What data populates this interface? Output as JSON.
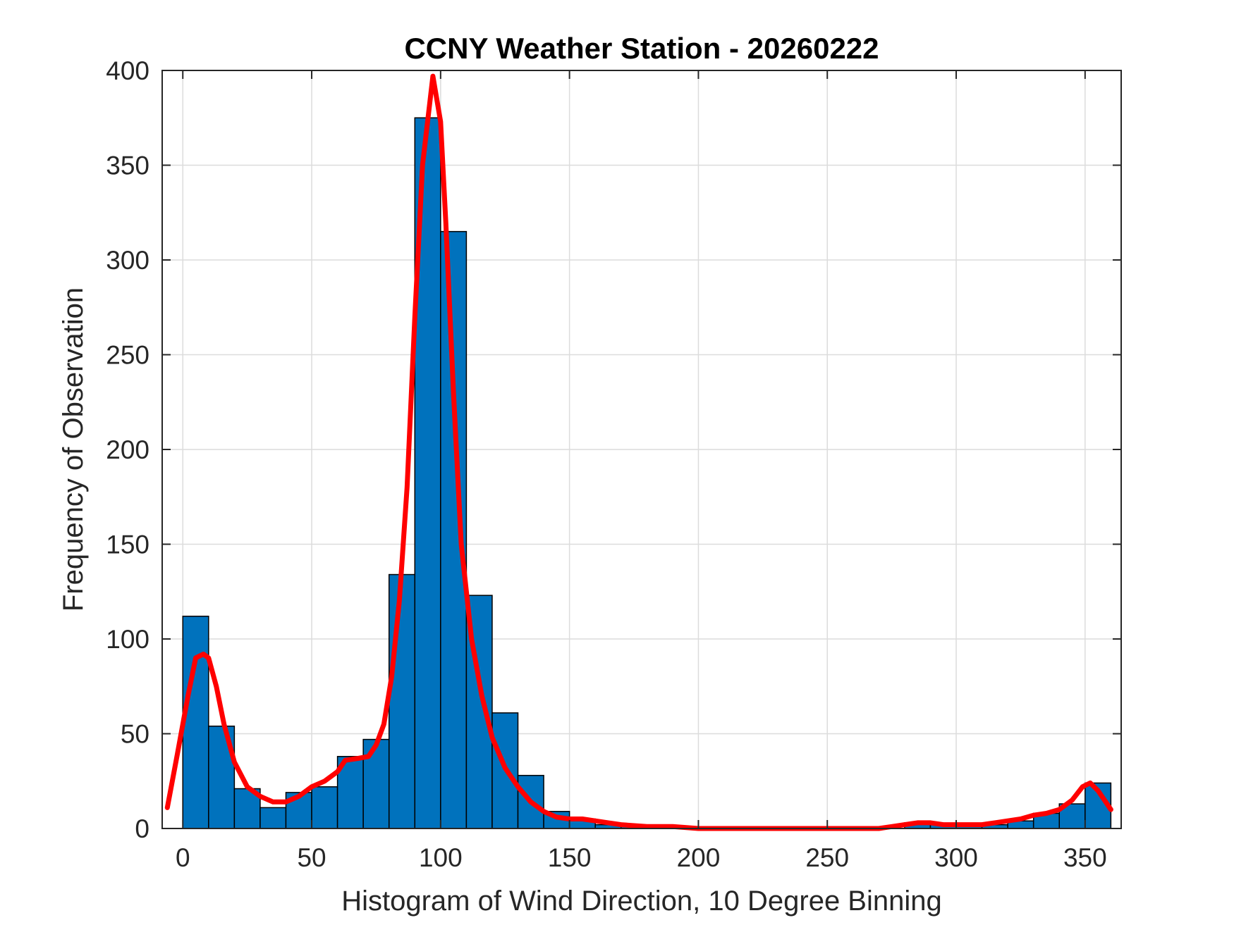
{
  "chart_data": {
    "type": "bar",
    "title": "CCNY Weather Station - 20260222",
    "xlabel": "Histogram of Wind Direction, 10 Degree Binning",
    "ylabel": "Frequency of Observation",
    "xlim": [
      -8,
      364
    ],
    "ylim": [
      0,
      400
    ],
    "xticks": [
      0,
      50,
      100,
      150,
      200,
      250,
      300,
      350
    ],
    "yticks": [
      0,
      50,
      100,
      150,
      200,
      250,
      300,
      350,
      400
    ],
    "grid": true,
    "bin_width": 10,
    "bar_color": "#0072bd",
    "curve_color": "#ff0000",
    "bars": [
      {
        "x": 0,
        "value": 112
      },
      {
        "x": 10,
        "value": 54
      },
      {
        "x": 20,
        "value": 21
      },
      {
        "x": 30,
        "value": 11
      },
      {
        "x": 40,
        "value": 19
      },
      {
        "x": 50,
        "value": 22
      },
      {
        "x": 60,
        "value": 38
      },
      {
        "x": 70,
        "value": 47
      },
      {
        "x": 80,
        "value": 134
      },
      {
        "x": 90,
        "value": 375
      },
      {
        "x": 100,
        "value": 315
      },
      {
        "x": 110,
        "value": 123
      },
      {
        "x": 120,
        "value": 61
      },
      {
        "x": 130,
        "value": 28
      },
      {
        "x": 140,
        "value": 9
      },
      {
        "x": 150,
        "value": 5
      },
      {
        "x": 160,
        "value": 2
      },
      {
        "x": 170,
        "value": 1
      },
      {
        "x": 180,
        "value": 1
      },
      {
        "x": 190,
        "value": 1
      },
      {
        "x": 200,
        "value": 0
      },
      {
        "x": 210,
        "value": 0
      },
      {
        "x": 220,
        "value": 0
      },
      {
        "x": 230,
        "value": 0
      },
      {
        "x": 240,
        "value": 0
      },
      {
        "x": 250,
        "value": 0
      },
      {
        "x": 260,
        "value": 0
      },
      {
        "x": 270,
        "value": 0
      },
      {
        "x": 280,
        "value": 3
      },
      {
        "x": 290,
        "value": 2
      },
      {
        "x": 300,
        "value": 2
      },
      {
        "x": 310,
        "value": 2
      },
      {
        "x": 320,
        "value": 4
      },
      {
        "x": 330,
        "value": 8
      },
      {
        "x": 340,
        "value": 13
      },
      {
        "x": 350,
        "value": 24
      }
    ],
    "curve": [
      [
        -6,
        11
      ],
      [
        -2,
        40
      ],
      [
        2,
        70
      ],
      [
        5,
        90
      ],
      [
        8,
        92
      ],
      [
        10,
        90
      ],
      [
        13,
        75
      ],
      [
        16,
        55
      ],
      [
        20,
        35
      ],
      [
        25,
        22
      ],
      [
        30,
        17
      ],
      [
        35,
        14
      ],
      [
        40,
        14
      ],
      [
        45,
        17
      ],
      [
        50,
        22
      ],
      [
        55,
        25
      ],
      [
        60,
        30
      ],
      [
        63,
        36
      ],
      [
        68,
        37
      ],
      [
        72,
        38
      ],
      [
        75,
        44
      ],
      [
        78,
        55
      ],
      [
        81,
        80
      ],
      [
        84,
        120
      ],
      [
        87,
        180
      ],
      [
        90,
        270
      ],
      [
        93,
        350
      ],
      [
        97,
        397
      ],
      [
        100,
        373
      ],
      [
        102,
        320
      ],
      [
        105,
        230
      ],
      [
        108,
        150
      ],
      [
        112,
        100
      ],
      [
        116,
        70
      ],
      [
        120,
        48
      ],
      [
        125,
        32
      ],
      [
        130,
        22
      ],
      [
        135,
        14
      ],
      [
        140,
        9
      ],
      [
        145,
        6
      ],
      [
        150,
        5
      ],
      [
        155,
        5
      ],
      [
        160,
        4
      ],
      [
        165,
        3
      ],
      [
        170,
        2
      ],
      [
        180,
        1
      ],
      [
        190,
        1
      ],
      [
        200,
        0
      ],
      [
        210,
        0
      ],
      [
        220,
        0
      ],
      [
        230,
        0
      ],
      [
        240,
        0
      ],
      [
        250,
        0
      ],
      [
        260,
        0
      ],
      [
        270,
        0
      ],
      [
        275,
        1
      ],
      [
        280,
        2
      ],
      [
        285,
        3
      ],
      [
        290,
        3
      ],
      [
        295,
        2
      ],
      [
        300,
        2
      ],
      [
        305,
        2
      ],
      [
        310,
        2
      ],
      [
        315,
        3
      ],
      [
        320,
        4
      ],
      [
        325,
        5
      ],
      [
        330,
        7
      ],
      [
        335,
        8
      ],
      [
        340,
        10
      ],
      [
        345,
        15
      ],
      [
        349,
        22
      ],
      [
        352,
        24
      ],
      [
        355,
        20
      ],
      [
        360,
        10
      ]
    ]
  }
}
